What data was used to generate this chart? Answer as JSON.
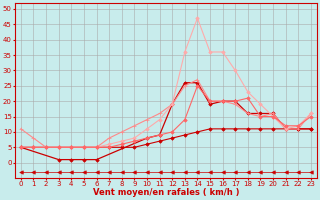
{
  "background_color": "#c8ecec",
  "grid_color": "#aaaaaa",
  "xlabel": "Vent moyen/en rafales ( km/h )",
  "xlabel_color": "#cc0000",
  "xlabel_fontsize": 6,
  "xtick_fontsize": 5,
  "ytick_fontsize": 5,
  "xlim": [
    -0.5,
    23.5
  ],
  "ylim": [
    -5,
    52
  ],
  "yticks": [
    0,
    5,
    10,
    15,
    20,
    25,
    30,
    35,
    40,
    45,
    50
  ],
  "xticks": [
    0,
    1,
    2,
    3,
    4,
    5,
    6,
    7,
    8,
    9,
    10,
    11,
    12,
    13,
    14,
    15,
    16,
    17,
    18,
    19,
    20,
    21,
    22,
    23
  ],
  "series": [
    {
      "x": [
        0,
        1,
        2,
        3,
        4,
        5,
        6,
        7,
        8,
        9,
        10,
        11,
        12,
        13,
        14,
        15,
        16,
        17,
        18,
        19,
        20,
        21,
        22,
        23
      ],
      "y": [
        5,
        5,
        5,
        5,
        5,
        5,
        5,
        5,
        5,
        5,
        6,
        7,
        8,
        9,
        10,
        11,
        11,
        11,
        11,
        11,
        11,
        11,
        11,
        11
      ],
      "color": "#cc0000",
      "lw": 0.8,
      "marker": "D",
      "ms": 1.8
    },
    {
      "x": [
        0,
        3,
        4,
        5,
        6,
        10,
        11,
        12,
        13,
        14,
        15,
        16,
        17,
        18,
        19,
        20,
        21,
        22,
        23
      ],
      "y": [
        5,
        1,
        1,
        1,
        1,
        8,
        9,
        19,
        26,
        26,
        19,
        20,
        20,
        16,
        16,
        16,
        11,
        11,
        11
      ],
      "color": "#cc0000",
      "lw": 0.9,
      "marker": "D",
      "ms": 1.8
    },
    {
      "x": [
        0,
        1,
        2,
        3,
        4,
        5,
        6,
        7,
        8,
        9,
        10,
        11,
        12,
        13,
        14,
        15,
        16,
        17,
        18,
        19,
        20,
        21,
        22,
        23
      ],
      "y": [
        11,
        8,
        5,
        5,
        5,
        5,
        5,
        8,
        10,
        12,
        14,
        16,
        19,
        25,
        27,
        20,
        20,
        19,
        16,
        15,
        16,
        11,
        11,
        16
      ],
      "color": "#ff8888",
      "lw": 0.8,
      "marker": "+",
      "ms": 3
    },
    {
      "x": [
        0,
        1,
        2,
        3,
        4,
        5,
        6,
        7,
        8,
        9,
        10,
        11,
        12,
        13,
        14,
        15,
        16,
        17,
        18,
        19,
        20,
        21,
        22,
        23
      ],
      "y": [
        5,
        5,
        5,
        5,
        5,
        5,
        5,
        6,
        7,
        8,
        11,
        14,
        19,
        36,
        47,
        36,
        36,
        30,
        23,
        19,
        15,
        11,
        12,
        16
      ],
      "color": "#ffaaaa",
      "lw": 0.8,
      "marker": "D",
      "ms": 1.8
    },
    {
      "x": [
        0,
        1,
        2,
        3,
        4,
        5,
        6,
        7,
        8,
        9,
        10,
        11,
        12,
        13,
        14,
        15,
        16,
        17,
        18,
        19,
        20,
        21,
        22,
        23
      ],
      "y": [
        5,
        5,
        5,
        5,
        5,
        5,
        5,
        5,
        6,
        7,
        8,
        9,
        10,
        14,
        25,
        20,
        20,
        20,
        21,
        15,
        15,
        12,
        12,
        15
      ],
      "color": "#ff6666",
      "lw": 0.8,
      "marker": "D",
      "ms": 1.8
    },
    {
      "x": [
        0,
        1,
        2,
        3,
        4,
        5,
        6,
        7,
        8,
        9,
        10,
        11,
        12,
        13,
        14,
        15,
        16,
        17,
        18,
        19,
        20,
        21,
        22,
        23
      ],
      "y": [
        -3,
        -3,
        -3,
        -3,
        -3,
        -3,
        -3,
        -3,
        -3,
        -3,
        -3,
        -3,
        -3,
        -3,
        -3,
        -3,
        -3,
        -3,
        -3,
        -3,
        -3,
        -3,
        -3,
        -3
      ],
      "color": "#cc0000",
      "lw": 0.5,
      "marker": "<",
      "ms": 2.5
    }
  ]
}
